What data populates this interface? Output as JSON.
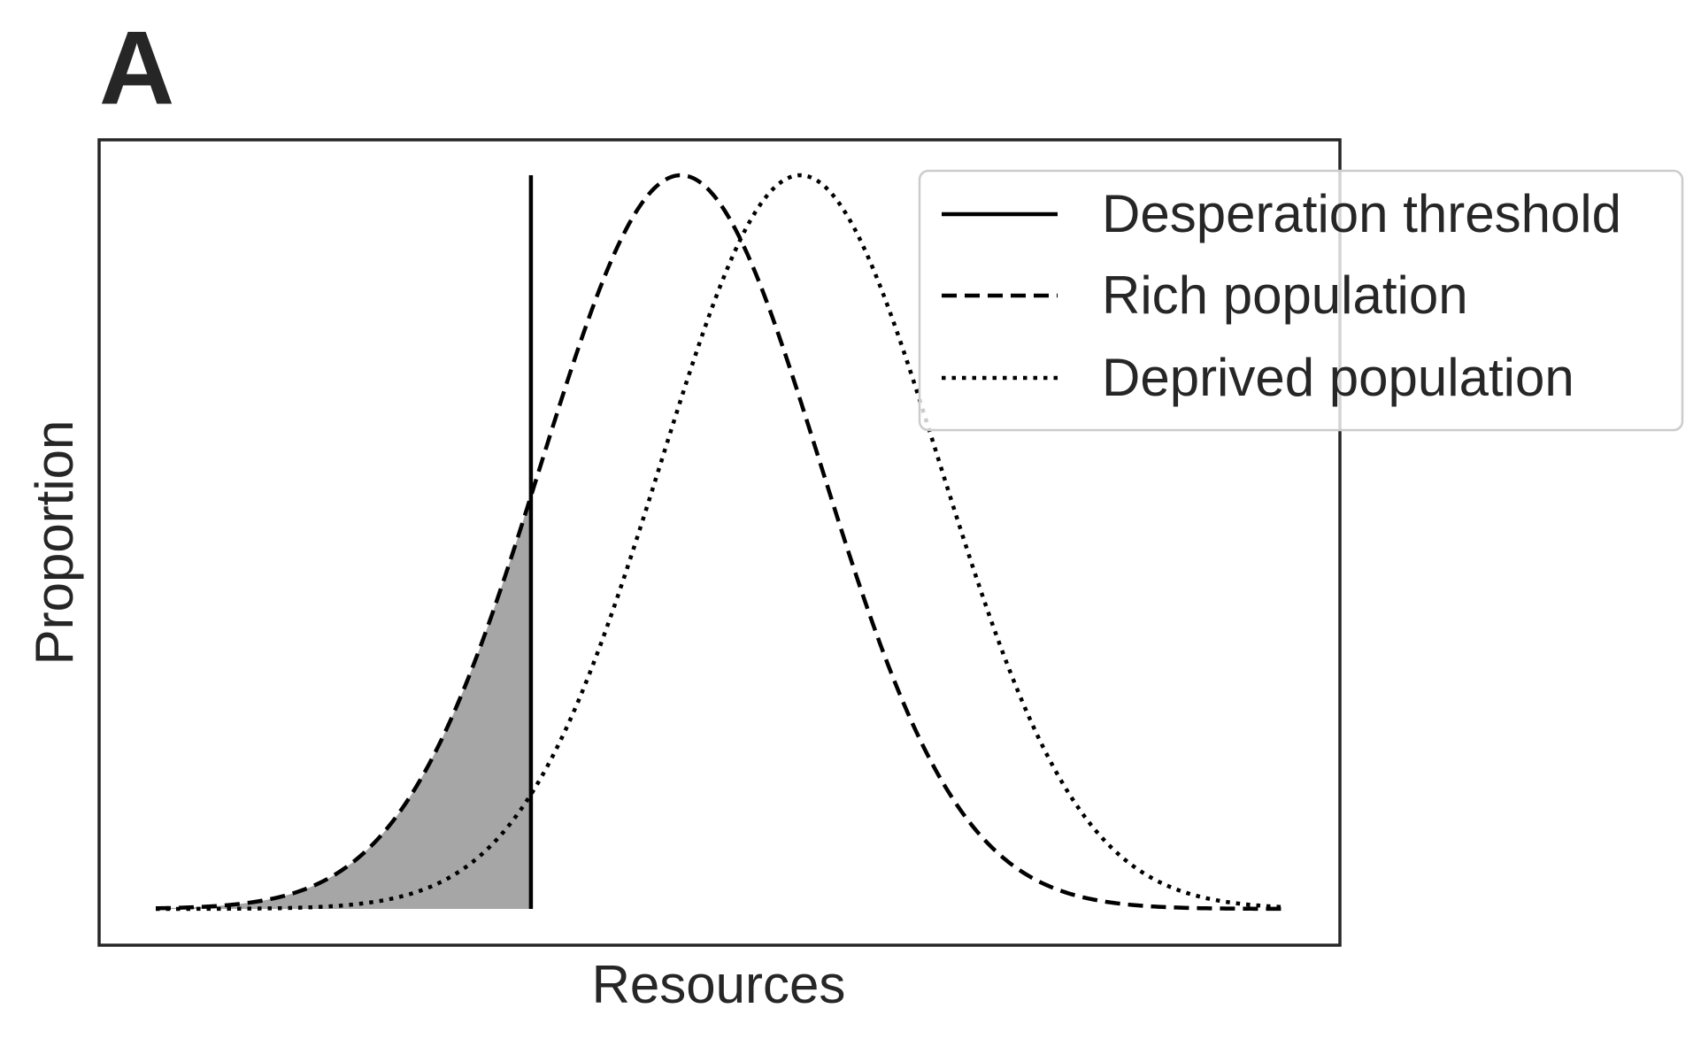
{
  "panel_label": "A",
  "chart_data": {
    "type": "line",
    "xlabel": "Resources",
    "ylabel": "Proportion",
    "x_ticks": [],
    "y_ticks": [],
    "xlim": [
      0,
      100
    ],
    "ylim": [
      0,
      1.05
    ],
    "grid": false,
    "legend_position": "top-right",
    "threshold": {
      "name": "Desperation threshold",
      "x": 33.3,
      "y_max": 1.0,
      "color": "#000000",
      "style": "solid"
    },
    "shaded_area": {
      "description_series": "Rich population",
      "x_range": [
        0,
        33.3
      ],
      "color": "#a6a6a6"
    },
    "series": [
      {
        "name": "Rich population",
        "style": "dashed",
        "color": "#000000",
        "distribution": "normal",
        "mean": 46.6,
        "sd": 12.4,
        "peak": 1.0,
        "x_range": [
          0,
          100
        ]
      },
      {
        "name": "Deprived population",
        "style": "dotted",
        "color": "#000000",
        "distribution": "normal",
        "mean": 57.2,
        "sd": 12.4,
        "peak": 1.0,
        "x_range": [
          0,
          100
        ]
      }
    ]
  }
}
